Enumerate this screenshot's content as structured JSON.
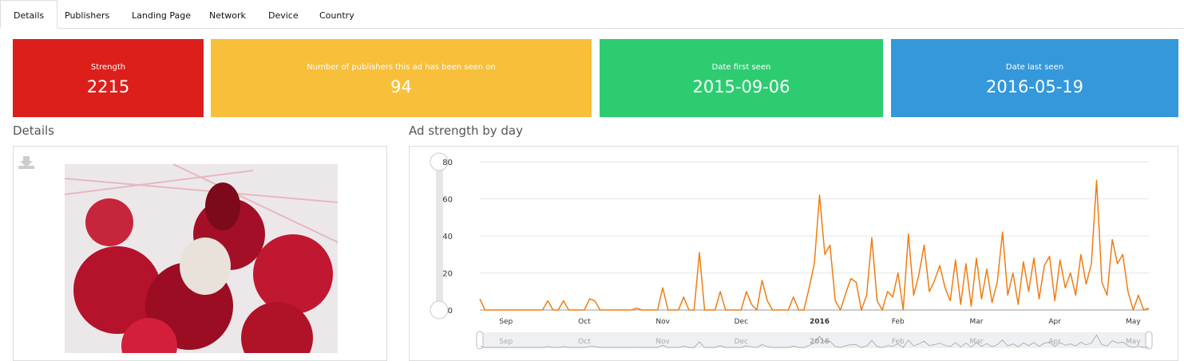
{
  "tabs": [
    "Details",
    "Publishers",
    "Landing Page",
    "Network",
    "Device",
    "Country"
  ],
  "cards": [
    {
      "label": "Strength",
      "value": 2215
    },
    {
      "label": "Number of publishers this ad has been seen on",
      "value": 94
    },
    {
      "label": "Date first seen",
      "value": "2015-09-06"
    },
    {
      "label": "Date last seen",
      "value": "2016-05-19"
    }
  ],
  "details": {
    "title": "Details"
  },
  "chart_data": {
    "type": "line",
    "title": "Ad strength by day",
    "color": "#f07c13",
    "categories": [
      null,
      null,
      null,
      null,
      null,
      "Sep",
      null,
      null,
      null,
      null,
      null,
      null,
      null,
      null,
      null,
      null,
      null,
      null,
      null,
      null,
      "Oct",
      null,
      null,
      null,
      null,
      null,
      null,
      null,
      null,
      null,
      null,
      null,
      null,
      null,
      null,
      "Nov",
      null,
      null,
      null,
      null,
      null,
      null,
      null,
      null,
      null,
      null,
      null,
      null,
      null,
      null,
      "Dec",
      null,
      null,
      null,
      null,
      null,
      null,
      null,
      null,
      null,
      null,
      null,
      null,
      null,
      null,
      "2016",
      null,
      null,
      null,
      null,
      null,
      null,
      null,
      null,
      null,
      null,
      null,
      null,
      null,
      null,
      "Feb",
      null,
      null,
      null,
      null,
      null,
      null,
      null,
      null,
      null,
      null,
      null,
      null,
      null,
      null,
      "Mar",
      null,
      null,
      null,
      null,
      null,
      null,
      null,
      null,
      null,
      null,
      null,
      null,
      null,
      null,
      "Apr",
      null,
      null,
      null,
      null,
      null,
      null,
      null,
      null,
      null,
      null,
      null,
      null,
      null,
      null,
      "May",
      null,
      null,
      null
    ],
    "values": [
      6,
      0,
      0,
      0,
      0,
      0,
      0,
      0,
      0,
      0,
      0,
      0,
      0,
      5,
      0,
      0,
      5,
      0,
      0,
      0,
      0,
      6,
      5,
      0,
      0,
      0,
      0,
      0,
      0,
      0,
      1,
      0,
      0,
      0,
      0,
      12,
      0,
      0,
      0,
      7,
      0,
      0,
      31,
      0,
      0,
      0,
      10,
      0,
      0,
      0,
      0,
      10,
      3,
      0,
      16,
      5,
      0,
      0,
      0,
      0,
      7,
      0,
      0,
      12,
      25,
      62,
      30,
      35,
      5,
      0,
      9,
      17,
      15,
      0,
      8,
      39,
      5,
      0,
      10,
      7,
      20,
      0,
      41,
      8,
      19,
      35,
      10,
      16,
      24,
      12,
      5,
      27,
      3,
      25,
      2,
      28,
      6,
      22,
      4,
      15,
      42,
      8,
      20,
      3,
      26,
      10,
      28,
      6,
      24,
      29,
      5,
      27,
      12,
      20,
      8,
      30,
      14,
      25,
      70,
      15,
      8,
      38,
      25,
      30,
      10,
      0,
      8,
      0,
      1
    ],
    "ylim": [
      0,
      80
    ],
    "yticks": [
      0,
      20,
      40,
      60,
      80
    ],
    "grid": true
  }
}
